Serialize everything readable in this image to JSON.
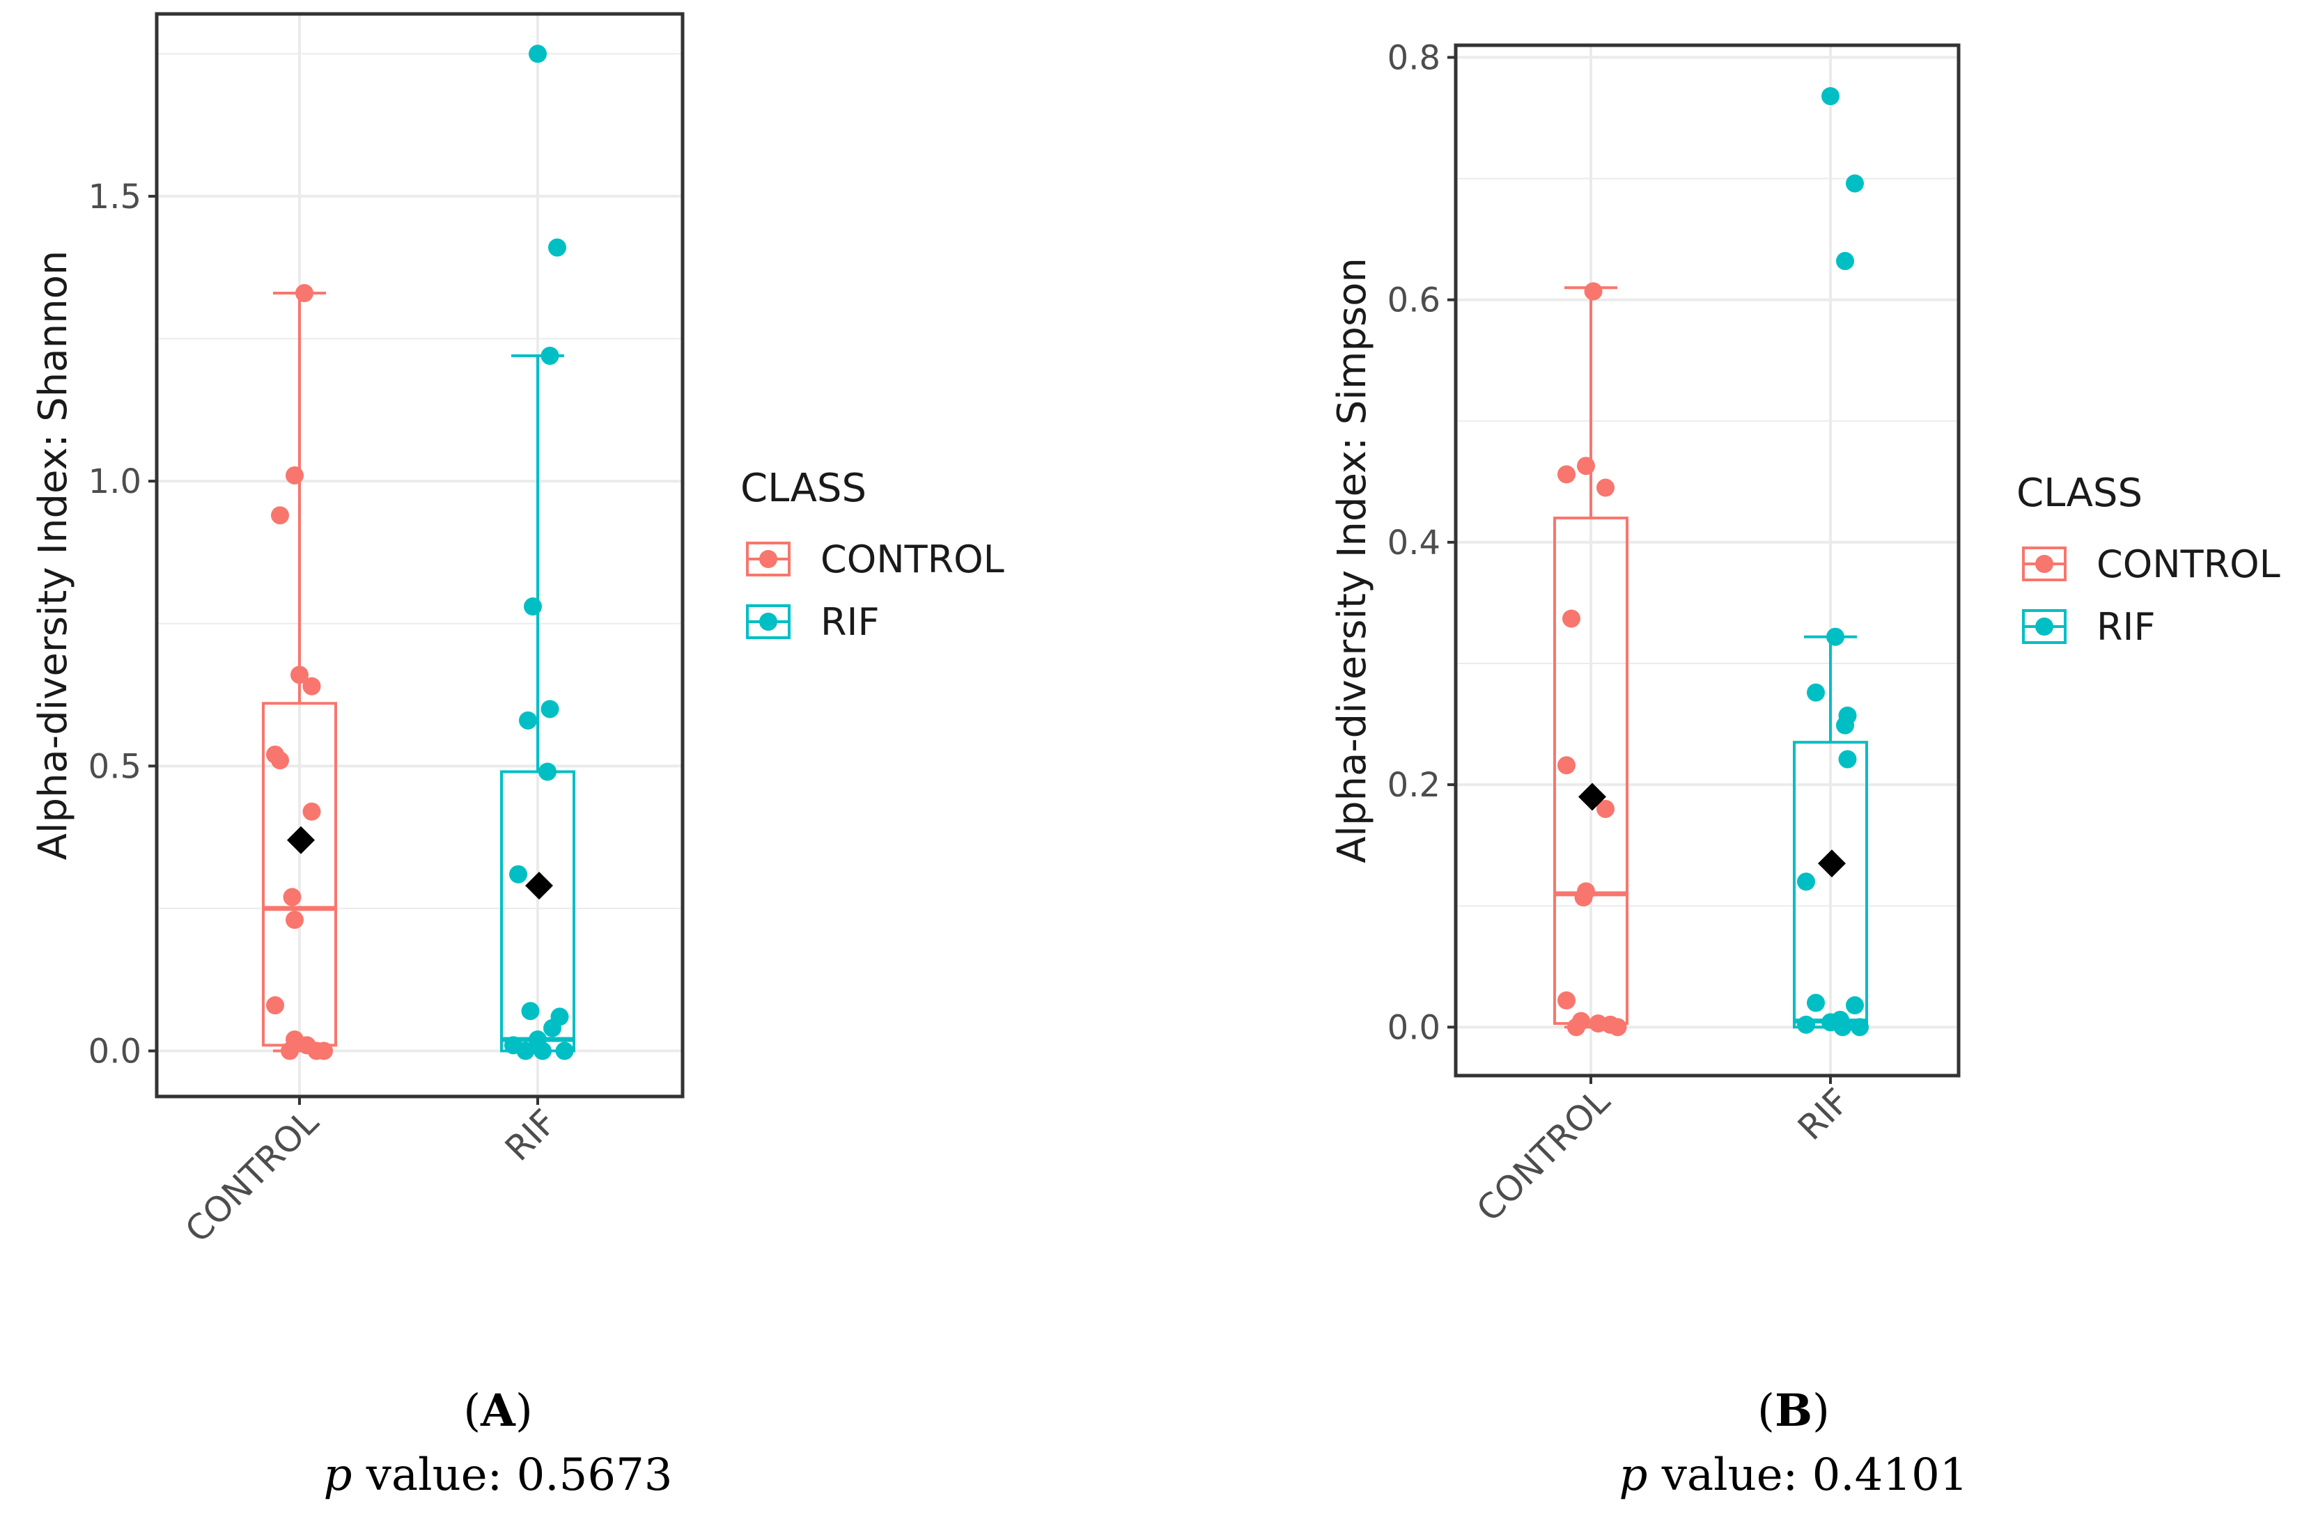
{
  "colors": {
    "control": "#F8766D",
    "rif": "#00BFC4",
    "mean": "#000000",
    "grid": "#EBEBEB",
    "panel_border": "#333333"
  },
  "legend": {
    "title": "CLASS",
    "items": [
      "CONTROL",
      "RIF"
    ]
  },
  "chart_data": [
    {
      "type": "box",
      "panel_label": "A",
      "p_value_label": "p",
      "p_value_text": " value: 0.5673",
      "ylabel": "Alpha-diversity Index: Shannon",
      "categories": [
        "CONTROL",
        "RIF"
      ],
      "ylim": [
        -0.08,
        1.82
      ],
      "yticks": [
        0.0,
        0.5,
        1.0,
        1.5
      ],
      "ytick_labels": [
        "0.0",
        "0.5",
        "1.0",
        "1.5"
      ],
      "boxes": [
        {
          "category": "CONTROL",
          "min": 0.0,
          "q1": 0.01,
          "median": 0.25,
          "q3": 0.61,
          "max": 1.33,
          "mean": 0.37
        },
        {
          "category": "RIF",
          "min": 0.0,
          "q1": 0.0,
          "median": 0.02,
          "q3": 0.49,
          "max": 1.22,
          "mean": 0.29
        }
      ],
      "points": [
        {
          "category": "CONTROL",
          "values": [
            1.33,
            1.01,
            0.94,
            0.66,
            0.64,
            0.52,
            0.51,
            0.42,
            0.27,
            0.23,
            0.08,
            0.02,
            0.01,
            0.0,
            0.0,
            0.0
          ],
          "jitter": [
            0.02,
            -0.02,
            -0.08,
            0.0,
            0.05,
            -0.1,
            -0.08,
            0.05,
            -0.03,
            -0.02,
            -0.1,
            -0.02,
            0.03,
            -0.04,
            0.07,
            0.1
          ]
        },
        {
          "category": "RIF",
          "values": [
            1.75,
            1.41,
            1.22,
            0.78,
            0.6,
            0.58,
            0.49,
            0.31,
            0.07,
            0.06,
            0.04,
            0.02,
            0.01,
            0.0,
            0.0,
            0.0
          ],
          "jitter": [
            0.0,
            0.08,
            0.05,
            -0.02,
            0.05,
            -0.04,
            0.04,
            -0.08,
            -0.03,
            0.09,
            0.06,
            0.0,
            -0.1,
            0.02,
            0.11,
            -0.05
          ]
        }
      ]
    },
    {
      "type": "box",
      "panel_label": "B",
      "p_value_label": "p",
      "p_value_text": " value: 0.4101",
      "ylabel": "Alpha-diversity Index: Simpson",
      "categories": [
        "CONTROL",
        "RIF"
      ],
      "ylim": [
        -0.04,
        0.81
      ],
      "yticks": [
        0.0,
        0.2,
        0.4,
        0.6,
        0.8
      ],
      "ytick_labels": [
        "0.0",
        "0.2",
        "0.4",
        "0.6",
        "0.8"
      ],
      "boxes": [
        {
          "category": "CONTROL",
          "min": 0.0,
          "q1": 0.003,
          "median": 0.11,
          "q3": 0.42,
          "max": 0.61,
          "mean": 0.19
        },
        {
          "category": "RIF",
          "min": 0.0,
          "q1": 0.0,
          "median": 0.005,
          "q3": 0.235,
          "max": 0.322,
          "mean": 0.135
        }
      ],
      "points": [
        {
          "category": "CONTROL",
          "values": [
            0.607,
            0.463,
            0.456,
            0.445,
            0.337,
            0.216,
            0.18,
            0.112,
            0.107,
            0.022,
            0.005,
            0.003,
            0.002,
            0.0,
            0.0
          ],
          "jitter": [
            0.01,
            -0.02,
            -0.1,
            0.06,
            -0.08,
            -0.1,
            0.06,
            -0.02,
            -0.03,
            -0.1,
            -0.04,
            0.03,
            0.08,
            -0.06,
            0.11
          ]
        },
        {
          "category": "RIF",
          "values": [
            0.768,
            0.696,
            0.632,
            0.322,
            0.276,
            0.257,
            0.249,
            0.221,
            0.12,
            0.02,
            0.018,
            0.006,
            0.004,
            0.002,
            0.0,
            0.0
          ],
          "jitter": [
            0.0,
            0.1,
            0.06,
            0.02,
            -0.06,
            0.07,
            0.06,
            0.07,
            -0.1,
            -0.06,
            0.1,
            0.04,
            0.0,
            -0.1,
            0.05,
            0.12
          ]
        }
      ]
    }
  ]
}
